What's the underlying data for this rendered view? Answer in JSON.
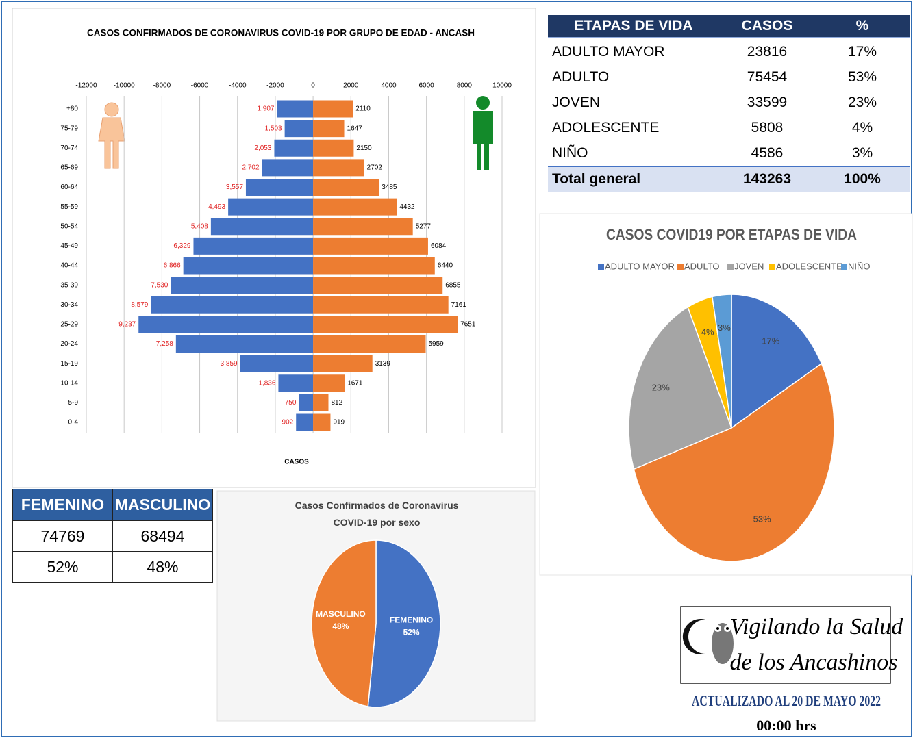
{
  "chart_data": [
    {
      "type": "pyramid",
      "title": "CASOS CONFIRMADOS DE CORONAVIRUS COVID-19  POR GRUPO DE EDAD - ANCASH",
      "xlabel": "CASOS",
      "categories": [
        "+80",
        "75-79",
        "70-74",
        "65-69",
        "60-64",
        "55-59",
        "50-54",
        "45-49",
        "40-44",
        "35-39",
        "30-34",
        "25-29",
        "20-24",
        "15-19",
        "10-14",
        "5-9",
        "0-4"
      ],
      "series": [
        {
          "color": "#4472c4",
          "values": [
            -1907,
            -1503,
            -2053,
            -2702,
            -3557,
            -4493,
            -5408,
            -6329,
            -6866,
            -7530,
            -8579,
            -9237,
            -7258,
            -3859,
            -1836,
            -750,
            -902
          ],
          "value_labels": [
            "1,907",
            "1,503",
            "2,053",
            "2,702",
            "3,557",
            "4,493",
            "5,408",
            "6,329",
            "6,866",
            "7,530",
            "8,579",
            "9,237",
            "7,258",
            "3,859",
            "1,836",
            "750",
            "902"
          ]
        },
        {
          "color": "#ed7d31",
          "values": [
            2110,
            1647,
            2150,
            2702,
            3485,
            4432,
            5277,
            6084,
            6440,
            6855,
            7161,
            7651,
            5959,
            3139,
            1671,
            812,
            919
          ]
        }
      ],
      "xlim": [
        -12000,
        10000
      ],
      "xticks": [
        -12000,
        -10000,
        -8000,
        -6000,
        -4000,
        -2000,
        0,
        2000,
        4000,
        6000,
        8000,
        10000
      ],
      "grid": true
    },
    {
      "type": "pie",
      "title": "Casos Confirmados de Coronavirus COVID-19 por sexo",
      "categories": [
        "FEMENINO",
        "MASCULINO"
      ],
      "values": [
        52,
        48
      ],
      "value_labels": [
        "52%",
        "48%"
      ],
      "colors": [
        "#4472c4",
        "#ed7d31"
      ]
    },
    {
      "type": "pie",
      "title": "CASOS COVID19 POR ETAPAS DE VIDA",
      "categories": [
        "ADULTO MAYOR",
        "ADULTO",
        "JOVEN",
        "ADOLESCENTE",
        "NIÑO"
      ],
      "values": [
        17,
        53,
        23,
        4,
        3
      ],
      "value_labels": [
        "17%",
        "53%",
        "23%",
        "4%",
        "3%"
      ],
      "colors": [
        "#4472c4",
        "#ed7d31",
        "#a5a5a5",
        "#ffc000",
        "#5b9bd5"
      ],
      "legend": "top"
    }
  ],
  "sex_table": {
    "header": [
      "FEMENINO",
      "MASCULINO"
    ],
    "rows": [
      [
        74769,
        68494
      ],
      [
        "52%",
        "48%"
      ]
    ]
  },
  "stage_table": {
    "header": [
      "ETAPAS DE VIDA",
      "CASOS",
      "%"
    ],
    "rows": [
      [
        "ADULTO MAYOR",
        23816,
        "17%"
      ],
      [
        "ADULTO",
        75454,
        "53%"
      ],
      [
        "JOVEN",
        33599,
        "23%"
      ],
      [
        "ADOLESCENTE",
        5808,
        "4%"
      ],
      [
        "NIÑO",
        4586,
        "3%"
      ]
    ],
    "total": [
      "Total general",
      143263,
      "100%"
    ]
  },
  "logo": {
    "lines": [
      "Vigilando la Salud",
      "de los Ancashinos"
    ]
  },
  "footer": {
    "updated": "ACTUALIZADO AL 20 DE MAYO 2022",
    "time": "00:00 hrs"
  }
}
